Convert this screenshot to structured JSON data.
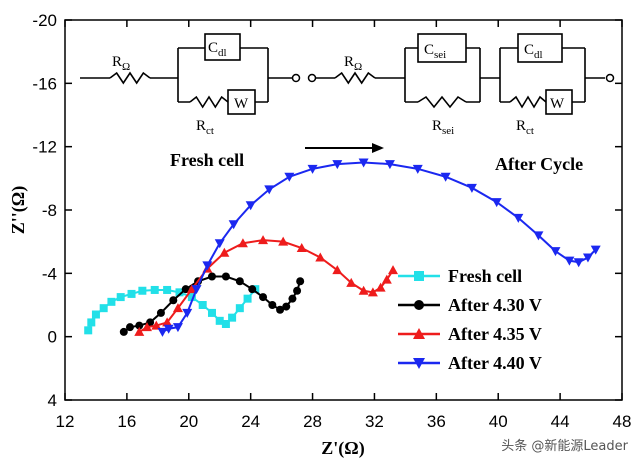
{
  "chart_data": {
    "type": "scatter",
    "x_label": "Z'(Ω)",
    "y_label": "Z''(Ω)",
    "xlim": [
      12,
      48
    ],
    "xticks": [
      12,
      16,
      20,
      24,
      28,
      32,
      36,
      40,
      44,
      48
    ],
    "ylim": [
      4,
      -20
    ],
    "yticks": [
      4,
      0,
      -4,
      -8,
      -12,
      -16,
      -20
    ],
    "annotations": [
      "Fresh cell",
      "After Cycle"
    ],
    "circuit_labels": [
      {
        "base": "R",
        "sub": "Ω"
      },
      {
        "base": "C",
        "sub": "dl"
      },
      {
        "base": "W",
        "sub": ""
      },
      {
        "base": "R",
        "sub": "ct"
      },
      {
        "base": "R",
        "sub": "Ω"
      },
      {
        "base": "C",
        "sub": "sei"
      },
      {
        "base": "R",
        "sub": "sei"
      },
      {
        "base": "C",
        "sub": "dl"
      },
      {
        "base": "W",
        "sub": ""
      },
      {
        "base": "R",
        "sub": "ct"
      }
    ],
    "watermark": "头条 @新能源Leader",
    "series": [
      {
        "name": "Fresh cell",
        "color": "#22e0e8",
        "marker": "square",
        "x": [
          13.5,
          13.7,
          14.0,
          14.5,
          15.0,
          15.6,
          16.3,
          17.0,
          17.8,
          18.6,
          19.4,
          20.2,
          20.9,
          21.5,
          22.0,
          22.4,
          22.8,
          23.3,
          23.8,
          24.3
        ],
        "values": [
          -0.4,
          -0.9,
          -1.4,
          -1.8,
          -2.2,
          -2.5,
          -2.7,
          -2.9,
          -2.95,
          -2.95,
          -2.8,
          -2.5,
          -2.0,
          -1.5,
          -1.0,
          -0.8,
          -1.2,
          -1.8,
          -2.4,
          -3.0
        ]
      },
      {
        "name": "After 4.30 V",
        "color": "#000000",
        "marker": "circle",
        "x": [
          15.8,
          16.2,
          16.8,
          17.5,
          18.2,
          19.0,
          19.8,
          20.6,
          21.5,
          22.4,
          23.3,
          24.1,
          24.8,
          25.4,
          25.9,
          26.3,
          26.7,
          27.0,
          27.2
        ],
        "values": [
          -0.3,
          -0.6,
          -0.7,
          -0.9,
          -1.5,
          -2.3,
          -3.0,
          -3.5,
          -3.8,
          -3.8,
          -3.5,
          -3.0,
          -2.5,
          -2.0,
          -1.7,
          -1.9,
          -2.4,
          -2.9,
          -3.5
        ]
      },
      {
        "name": "After 4.35 V",
        "color": "#ee1c1c",
        "marker": "triangle-up",
        "x": [
          16.8,
          17.3,
          17.9,
          18.6,
          19.3,
          20.2,
          21.2,
          22.3,
          23.5,
          24.8,
          26.1,
          27.3,
          28.5,
          29.6,
          30.5,
          31.3,
          31.9,
          32.4,
          32.8,
          33.2
        ],
        "values": [
          -0.3,
          -0.6,
          -0.7,
          -0.9,
          -1.8,
          -3.0,
          -4.3,
          -5.3,
          -5.9,
          -6.1,
          -6.0,
          -5.6,
          -5.0,
          -4.2,
          -3.4,
          -2.9,
          -2.8,
          -3.1,
          -3.6,
          -4.2
        ]
      },
      {
        "name": "After 4.40 V",
        "color": "#1b28f0",
        "marker": "triangle-down",
        "x": [
          18.3,
          18.7,
          19.3,
          19.9,
          20.5,
          21.2,
          22.0,
          22.9,
          24.0,
          25.2,
          26.5,
          28.0,
          29.6,
          31.3,
          33.0,
          34.8,
          36.6,
          38.3,
          39.9,
          41.3,
          42.6,
          43.7,
          44.6,
          45.2,
          45.8,
          46.3
        ],
        "values": [
          -0.3,
          -0.5,
          -0.6,
          -1.5,
          -3.0,
          -4.5,
          -5.9,
          -7.1,
          -8.3,
          -9.3,
          -10.1,
          -10.6,
          -10.9,
          -11.0,
          -10.9,
          -10.6,
          -10.1,
          -9.4,
          -8.5,
          -7.5,
          -6.4,
          -5.4,
          -4.8,
          -4.7,
          -5.0,
          -5.5
        ]
      }
    ]
  }
}
